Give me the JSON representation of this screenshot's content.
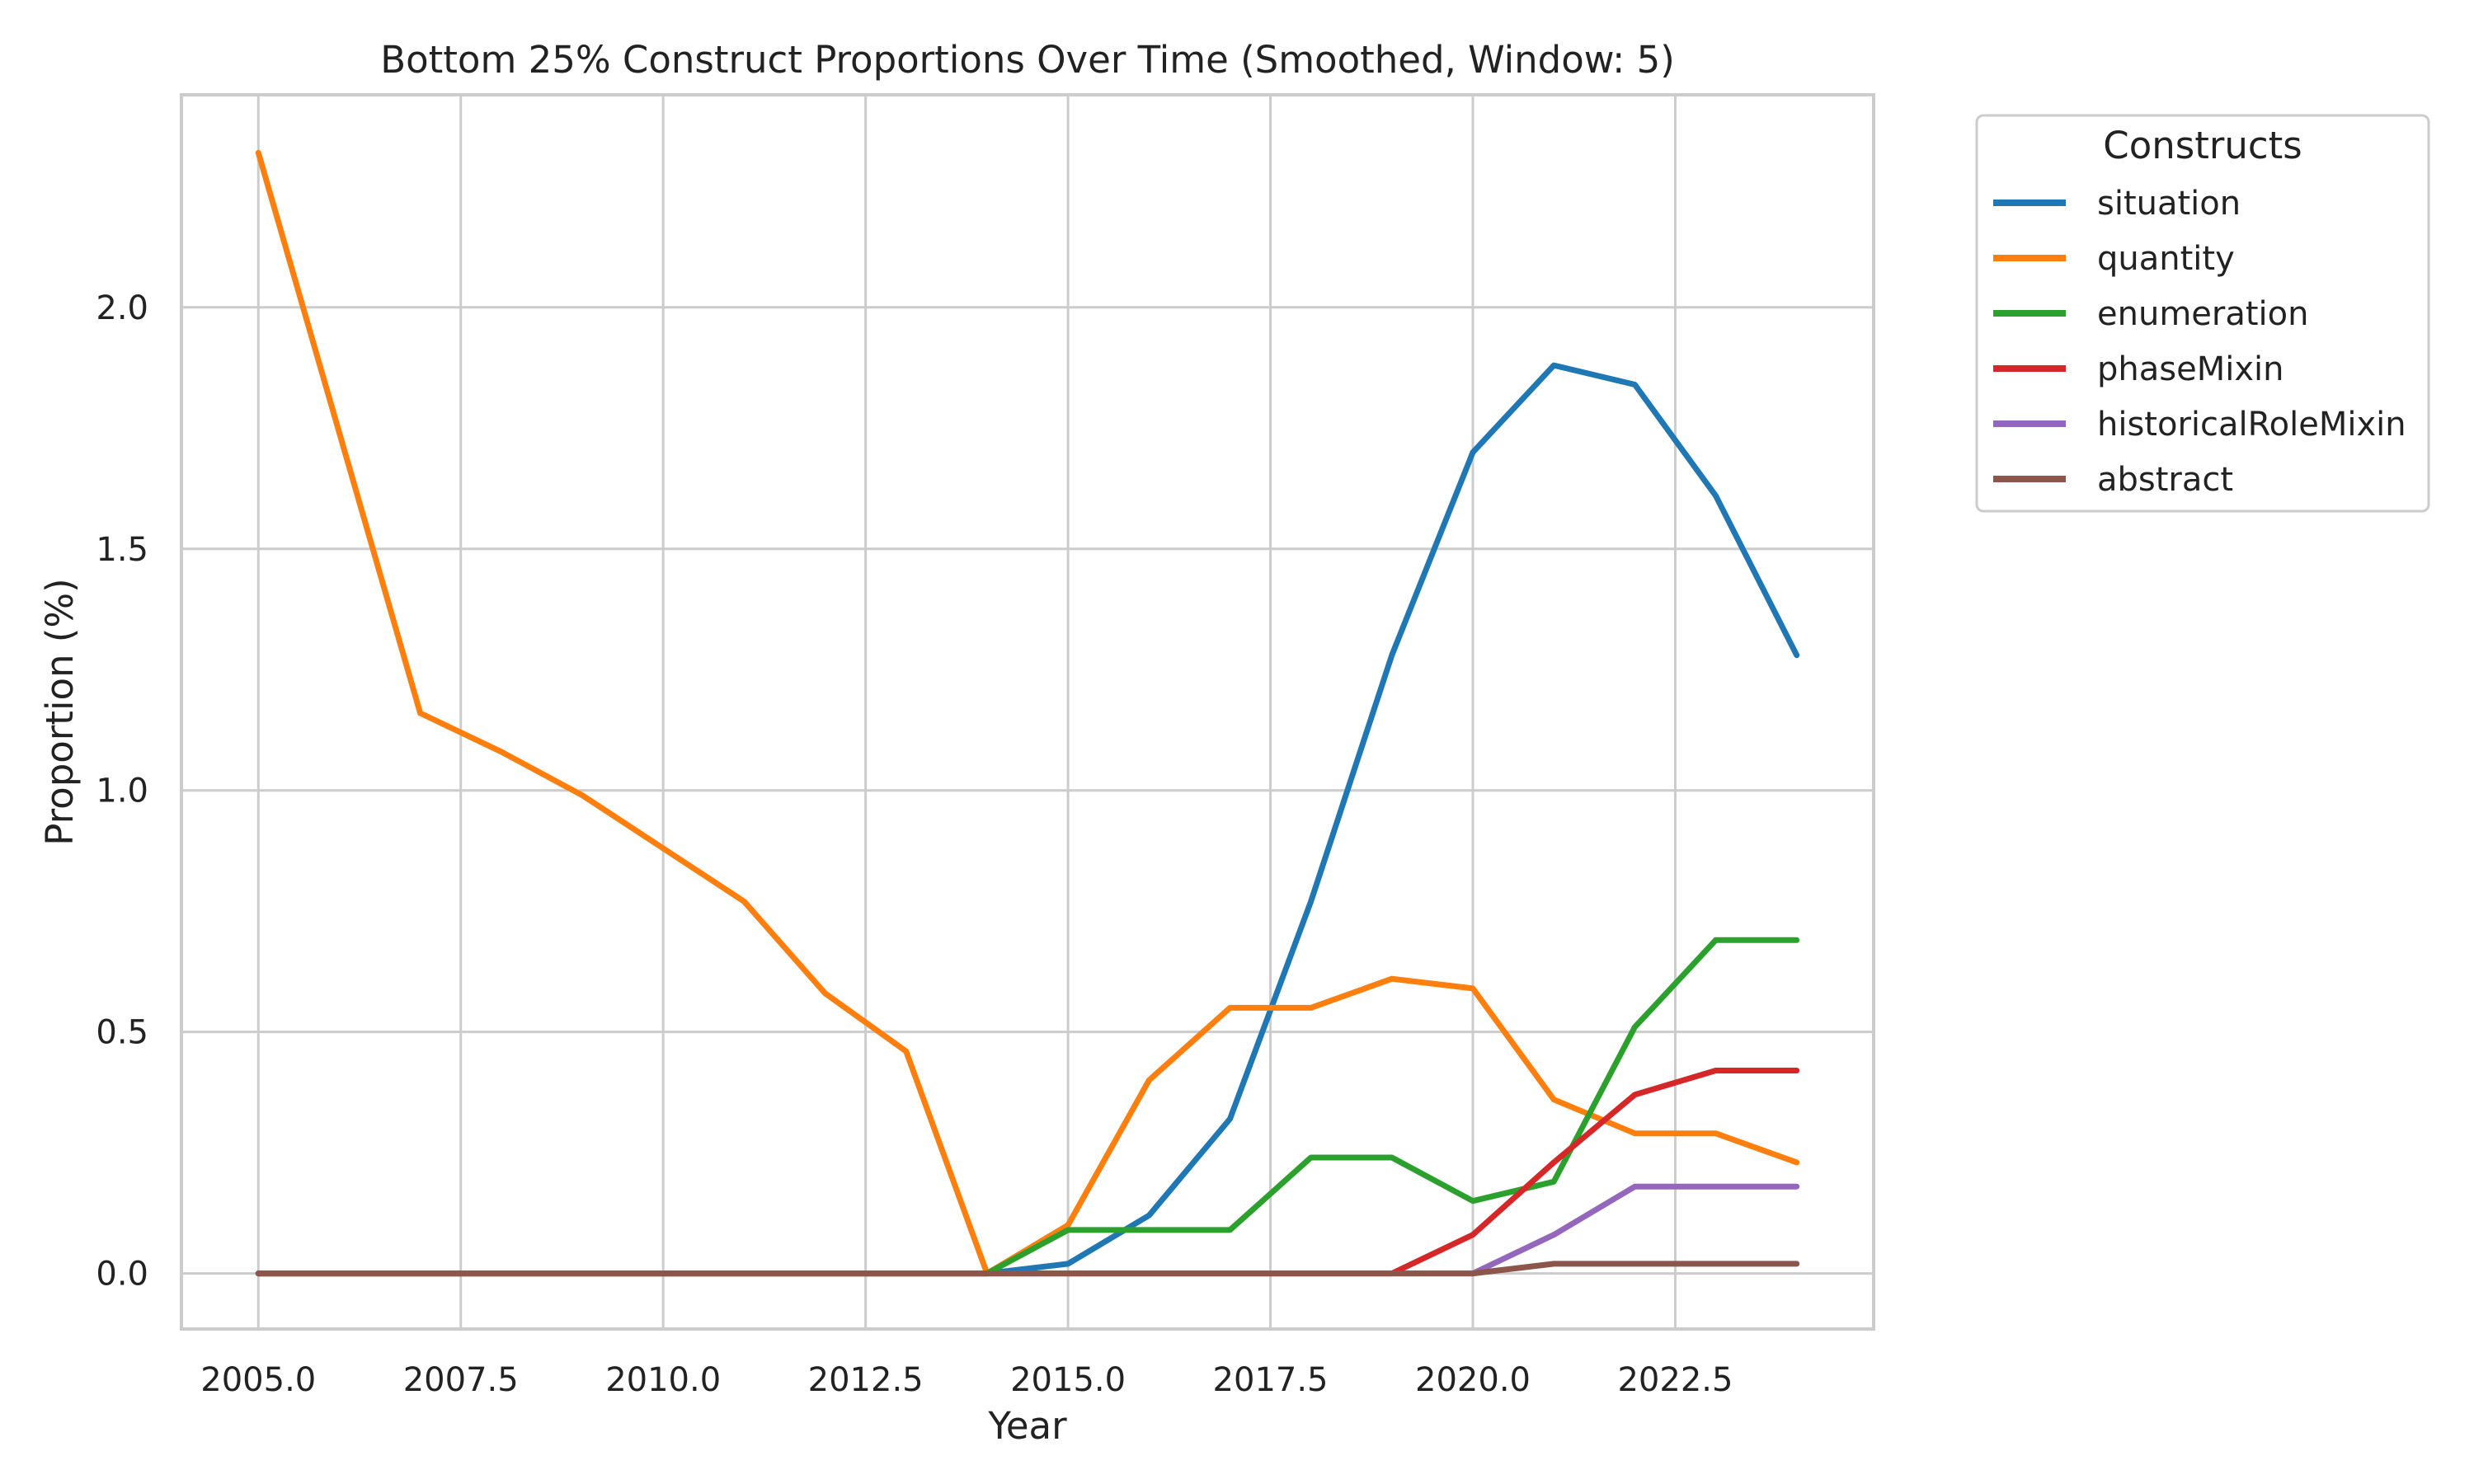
{
  "chart_data": {
    "type": "line",
    "title": "Bottom 25% Construct Proportions Over Time (Smoothed, Window: 5)",
    "xlabel": "Year",
    "ylabel": "Proportion (%)",
    "xlim": [
      2004.05,
      2024.95
    ],
    "ylim": [
      -0.115,
      2.44
    ],
    "xticks": [
      2005,
      2007.5,
      2010,
      2012.5,
      2015,
      2017.5,
      2020,
      2022.5
    ],
    "xtick_labels": [
      "2005.0",
      "2007.5",
      "2010.0",
      "2012.5",
      "2015.0",
      "2017.5",
      "2020.0",
      "2022.5"
    ],
    "yticks": [
      0,
      0.5,
      1.0,
      1.5,
      2.0
    ],
    "ytick_labels": [
      "0.0",
      "0.5",
      "1.0",
      "1.5",
      "2.0"
    ],
    "grid": true,
    "legend": {
      "title": "Constructs",
      "placement": "outside-right-top"
    },
    "x": [
      2005,
      2006,
      2007,
      2008,
      2009,
      2010,
      2011,
      2012,
      2013,
      2014,
      2015,
      2016,
      2017,
      2018,
      2019,
      2020,
      2021,
      2022,
      2023,
      2024
    ],
    "series": [
      {
        "name": "situation",
        "color": "#1f77b4",
        "values": [
          0,
          0,
          0,
          0,
          0,
          0,
          0,
          0,
          0,
          0,
          0.02,
          0.12,
          0.32,
          0.77,
          1.28,
          1.7,
          1.88,
          1.84,
          1.61,
          1.28
        ]
      },
      {
        "name": "quantity",
        "color": "#ff7f0e",
        "values": [
          2.32,
          1.74,
          1.16,
          1.08,
          0.99,
          0.88,
          0.77,
          0.58,
          0.46,
          0,
          0.1,
          0.4,
          0.55,
          0.55,
          0.61,
          0.59,
          0.36,
          0.29,
          0.29,
          0.23
        ]
      },
      {
        "name": "enumeration",
        "color": "#2ca02c",
        "values": [
          0,
          0,
          0,
          0,
          0,
          0,
          0,
          0,
          0,
          0,
          0.09,
          0.09,
          0.09,
          0.24,
          0.24,
          0.15,
          0.19,
          0.51,
          0.69,
          0.69
        ]
      },
      {
        "name": "phaseMixin",
        "color": "#d62728",
        "values": [
          0,
          0,
          0,
          0,
          0,
          0,
          0,
          0,
          0,
          0,
          0,
          0,
          0,
          0,
          0,
          0.08,
          0.23,
          0.37,
          0.42,
          0.42
        ]
      },
      {
        "name": "historicalRoleMixin",
        "color": "#9467bd",
        "values": [
          0,
          0,
          0,
          0,
          0,
          0,
          0,
          0,
          0,
          0,
          0,
          0,
          0,
          0,
          0,
          0,
          0.08,
          0.18,
          0.18,
          0.18
        ]
      },
      {
        "name": "abstract",
        "color": "#8c564b",
        "values": [
          0,
          0,
          0,
          0,
          0,
          0,
          0,
          0,
          0,
          0,
          0,
          0,
          0,
          0,
          0,
          0,
          0.02,
          0.02,
          0.02,
          0.02
        ]
      }
    ]
  }
}
